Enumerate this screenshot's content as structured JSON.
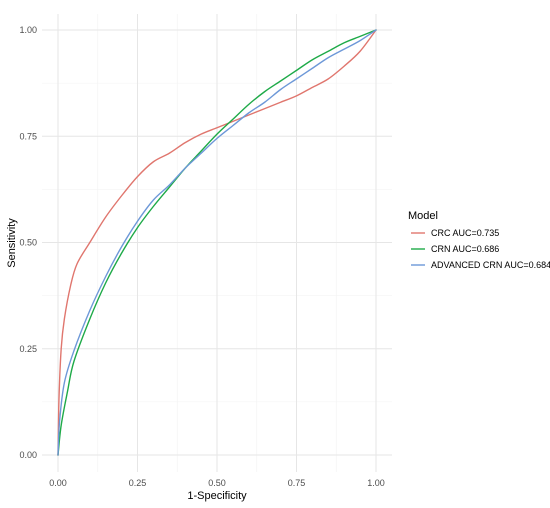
{
  "chart_data": {
    "type": "line",
    "xlabel": "1-Specificity",
    "ylabel": "Sensitivity",
    "xlim": [
      0,
      1
    ],
    "ylim": [
      0,
      1
    ],
    "x_ticks": [
      0,
      0.25,
      0.5,
      0.75,
      1
    ],
    "y_ticks": [
      0,
      0.25,
      0.5,
      0.75,
      1
    ],
    "x_tick_labels": [
      "0.00",
      "0.25",
      "0.50",
      "0.75",
      "1.00"
    ],
    "y_tick_labels": [
      "0.00",
      "0.25",
      "0.50",
      "0.75",
      "1.00"
    ],
    "grid": true,
    "legend": {
      "title": "Model",
      "placement": "right"
    },
    "series": [
      {
        "name": "CRC AUC=0.735",
        "color": "#e0766e",
        "x": [
          0,
          0.003,
          0.01,
          0.02,
          0.04,
          0.06,
          0.1,
          0.15,
          0.2,
          0.25,
          0.3,
          0.35,
          0.4,
          0.45,
          0.5,
          0.55,
          0.6,
          0.65,
          0.7,
          0.75,
          0.8,
          0.85,
          0.9,
          0.95,
          1.0
        ],
        "y": [
          0,
          0.13,
          0.25,
          0.32,
          0.4,
          0.45,
          0.5,
          0.56,
          0.61,
          0.655,
          0.69,
          0.71,
          0.735,
          0.755,
          0.77,
          0.785,
          0.8,
          0.815,
          0.83,
          0.845,
          0.865,
          0.885,
          0.915,
          0.95,
          1.0
        ]
      },
      {
        "name": "CRN AUC=0.686",
        "color": "#1eaa48",
        "x": [
          0,
          0.01,
          0.03,
          0.05,
          0.1,
          0.15,
          0.2,
          0.25,
          0.3,
          0.35,
          0.4,
          0.45,
          0.5,
          0.55,
          0.6,
          0.65,
          0.7,
          0.75,
          0.8,
          0.85,
          0.9,
          0.95,
          1.0
        ],
        "y": [
          0,
          0.07,
          0.15,
          0.22,
          0.32,
          0.405,
          0.475,
          0.535,
          0.585,
          0.63,
          0.675,
          0.715,
          0.755,
          0.79,
          0.825,
          0.855,
          0.88,
          0.905,
          0.93,
          0.95,
          0.97,
          0.985,
          1.0
        ]
      },
      {
        "name": "ADVANCED CRN AUC=0.684",
        "color": "#6d98d8",
        "x": [
          0,
          0.005,
          0.02,
          0.05,
          0.1,
          0.15,
          0.2,
          0.25,
          0.3,
          0.35,
          0.4,
          0.45,
          0.5,
          0.55,
          0.6,
          0.65,
          0.7,
          0.75,
          0.8,
          0.85,
          0.9,
          0.95,
          1.0
        ],
        "y": [
          0,
          0.08,
          0.17,
          0.245,
          0.34,
          0.42,
          0.49,
          0.55,
          0.6,
          0.635,
          0.675,
          0.71,
          0.745,
          0.775,
          0.805,
          0.83,
          0.86,
          0.885,
          0.91,
          0.935,
          0.955,
          0.975,
          1.0
        ]
      }
    ]
  }
}
